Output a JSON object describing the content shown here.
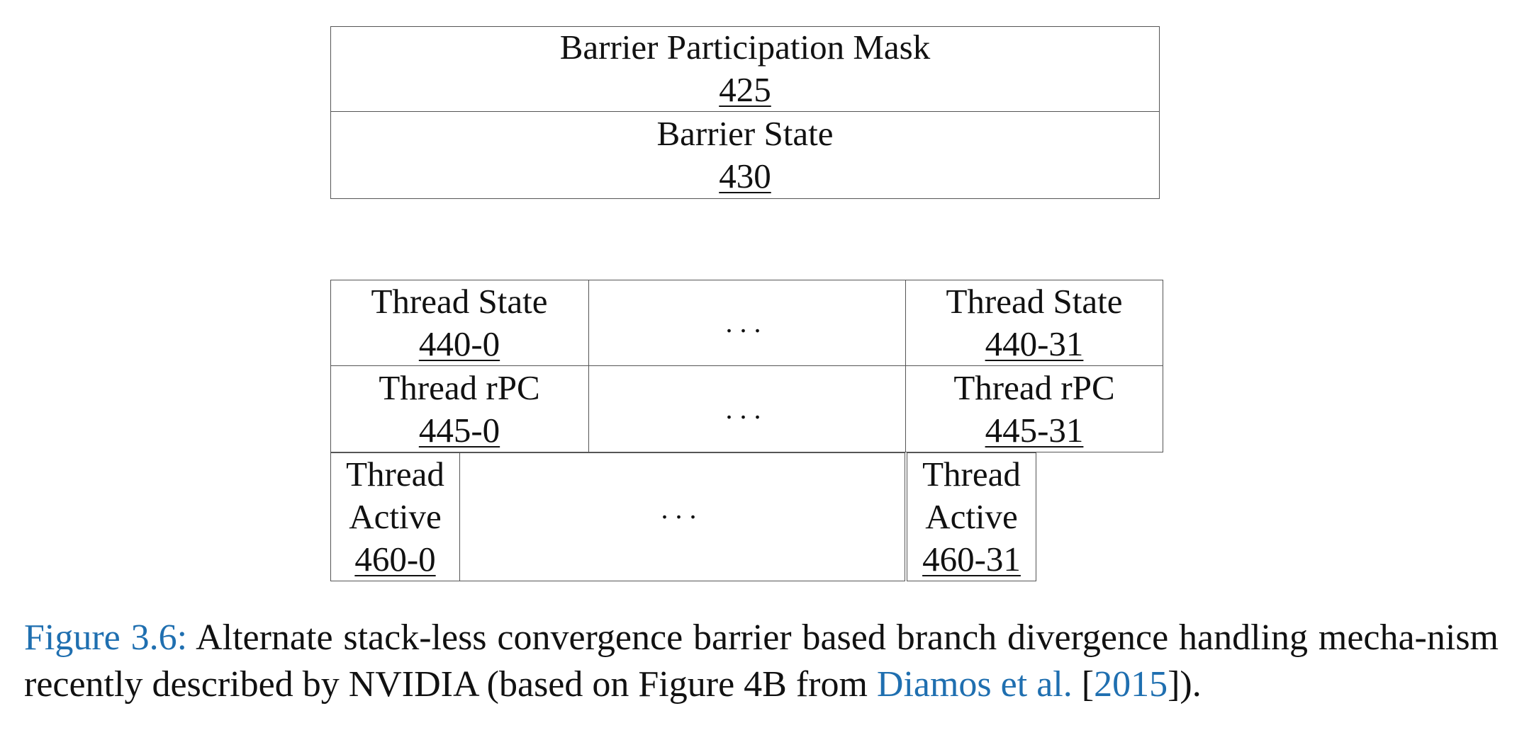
{
  "barrier_box": {
    "mask_label": "Barrier Participation Mask",
    "mask_ref": "425",
    "state_label": "Barrier State",
    "state_ref": "430"
  },
  "thread_table": {
    "state_row": {
      "first_label": "Thread State",
      "first_ref": "440-0",
      "ellipsis": "...",
      "last_label": "Thread State",
      "last_ref": "440-31"
    },
    "rpc_row": {
      "first_label": "Thread rPC",
      "first_ref": "445-0",
      "ellipsis": "...",
      "last_label": "Thread rPC",
      "last_ref": "445-31"
    },
    "active_row": {
      "first_line1": "Thread",
      "first_line2": "Active",
      "first_ref": "460-0",
      "ellipsis": "...",
      "last_line1": "Thread",
      "last_line2": "Active",
      "last_ref": "460-31"
    }
  },
  "caption": {
    "figure_label": "Figure 3.6:",
    "text_main": " Alternate stack-less convergence barrier based branch divergence handling mecha-nism recently described by NVIDIA (based on Figure 4B from ",
    "cite_authors": "Diamos et al.",
    "cite_open": " [",
    "cite_year": "2015",
    "cite_close": "])."
  }
}
